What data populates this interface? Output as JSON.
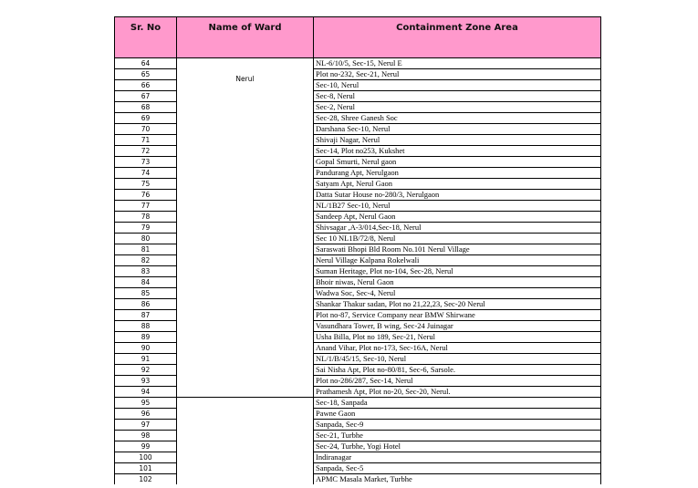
{
  "table": {
    "headers": [
      "Sr. No",
      "Name of Ward",
      "Containment Zone Area"
    ],
    "ward_groups": [
      {
        "ward": "Nerul",
        "start": 0,
        "count": 31
      },
      {
        "ward": "",
        "start": 31,
        "count": 8
      }
    ],
    "rows": [
      {
        "sr": "64",
        "area": "NL-6/10/5, Sec-15, Nerul E"
      },
      {
        "sr": "65",
        "area": "Plot no-232, Sec-21, Nerul"
      },
      {
        "sr": "66",
        "area": "Sec-10, Nerul"
      },
      {
        "sr": "67",
        "area": "Sec-8, Nerul"
      },
      {
        "sr": "68",
        "area": "Sec-2, Nerul"
      },
      {
        "sr": "69",
        "area": "Sec-28, Shree Ganesh Soc"
      },
      {
        "sr": "70",
        "area": "Darshana Sec-10, Nerul"
      },
      {
        "sr": "71",
        "area": "Shivaji Nagar, Nerul"
      },
      {
        "sr": "72",
        "area": "Sec-14, Plot no253, Kukshet"
      },
      {
        "sr": "73",
        "area": "Gopal Smurti, Nerul gaon"
      },
      {
        "sr": "74",
        "area": "Pandurang Apt, Nerulgaon"
      },
      {
        "sr": "75",
        "area": "Satyam Apt, Nerul Gaon"
      },
      {
        "sr": "76",
        "area": "Datta Sutar House no-280/3, Nerulgaon"
      },
      {
        "sr": "77",
        "area": "NL/1B27 Sec-10, Nerul"
      },
      {
        "sr": "78",
        "area": "Sandeep Apt, Nerul Gaon"
      },
      {
        "sr": "79",
        "area": "Shivsagar ,A-3/014,Sec-18, Nerul"
      },
      {
        "sr": "80",
        "area": "Sec 10 NL1B/72/8, Nerul"
      },
      {
        "sr": "81",
        "area": "Saraswati Bhopi Bld Room No.101 Nerul Village"
      },
      {
        "sr": "82",
        "area": "Nerul Village Kalpana Rokelwali"
      },
      {
        "sr": "83",
        "area": "Suman Heritage, Plot no-104, Sec-28, Nerul"
      },
      {
        "sr": "84",
        "area": "Bhoir niwas, Nerul Gaon"
      },
      {
        "sr": "85",
        "area": "Wadwa Soc, Sec-4, Nerul"
      },
      {
        "sr": "86",
        "area": "Shankar Thakur sadan, Plot no 21,22,23, Sec-20 Nerul"
      },
      {
        "sr": "87",
        "area": "Plot no-87, Service Company near BMW Shirwane"
      },
      {
        "sr": "88",
        "area": "Vasundhara Tower, B wing, Sec-24 Juinagar"
      },
      {
        "sr": "89",
        "area": "Usha Billa, Plot no 189, Sec-21, Nerul"
      },
      {
        "sr": "90",
        "area": "Anand Vihar, Plot no-173, Sec-16A, Nerul"
      },
      {
        "sr": "91",
        "area": "NL/1/B/45/15, Sec-10, Nerul"
      },
      {
        "sr": "92",
        "area": "Sai Nisha Apt, Plot no-80/81, Sec-6, Sarsole."
      },
      {
        "sr": "93",
        "area": "Plot no-286/287, Sec-14, Nerul"
      },
      {
        "sr": "94",
        "area": "Prathamesh Apt, Plot no-20, Sec-20, Nerul."
      },
      {
        "sr": "95",
        "area": "Sec-18, Sanpada"
      },
      {
        "sr": "96",
        "area": "Pawne Gaon"
      },
      {
        "sr": "97",
        "area": "Sanpada, Sec-9"
      },
      {
        "sr": "98",
        "area": "Sec-21, Turbhe"
      },
      {
        "sr": "99",
        "area": "Sec-24, Turbhe, Yogi Hotel"
      },
      {
        "sr": "100",
        "area": "Indiranagar"
      },
      {
        "sr": "101",
        "area": "Sanpada, Sec-5"
      },
      {
        "sr": "102",
        "area": "APMC Masala Market, Turbhe"
      }
    ]
  }
}
